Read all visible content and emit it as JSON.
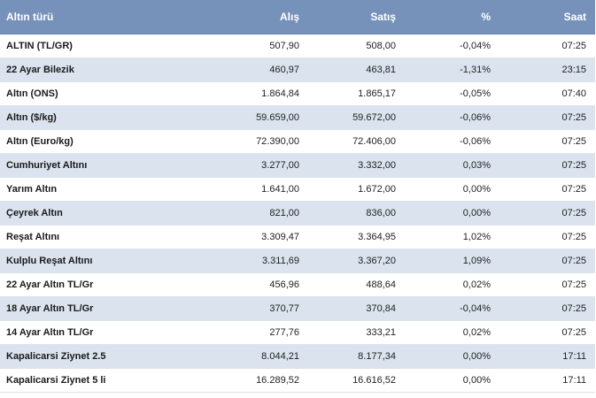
{
  "table": {
    "headers": [
      "Altın türü",
      "Alış",
      "Satış",
      "%",
      "Saat"
    ],
    "rows": [
      [
        "ALTIN (TL/GR)",
        "507,90",
        "508,00",
        "-0,04%",
        "07:25"
      ],
      [
        "22 Ayar Bilezik",
        "460,97",
        "463,81",
        "-1,31%",
        "23:15"
      ],
      [
        "Altın (ONS)",
        "1.864,84",
        "1.865,17",
        "-0,05%",
        "07:40"
      ],
      [
        "Altın ($/kg)",
        "59.659,00",
        "59.672,00",
        "-0,06%",
        "07:25"
      ],
      [
        "Altın (Euro/kg)",
        "72.390,00",
        "72.406,00",
        "-0,06%",
        "07:25"
      ],
      [
        "Cumhuriyet Altını",
        "3.277,00",
        "3.332,00",
        "0,03%",
        "07:25"
      ],
      [
        "Yarım Altın",
        "1.641,00",
        "1.672,00",
        "0,00%",
        "07:25"
      ],
      [
        "Çeyrek Altın",
        "821,00",
        "836,00",
        "0,00%",
        "07:25"
      ],
      [
        "Reşat Altını",
        "3.309,47",
        "3.364,95",
        "1,02%",
        "07:25"
      ],
      [
        "Kulplu Reşat Altını",
        "3.311,69",
        "3.367,20",
        "1,09%",
        "07:25"
      ],
      [
        "22 Ayar Altın TL/Gr",
        "456,96",
        "488,64",
        "0,02%",
        "07:25"
      ],
      [
        "18 Ayar Altın TL/Gr",
        "370,77",
        "370,84",
        "-0,04%",
        "07:25"
      ],
      [
        "14 Ayar Altın TL/Gr",
        "277,76",
        "333,21",
        "0,02%",
        "07:25"
      ],
      [
        "Kapalicarsi Ziynet 2.5",
        "8.044,21",
        "8.177,34",
        "0,00%",
        "17:11"
      ],
      [
        "Kapalicarsi Ziynet 5 li",
        "16.289,52",
        "16.616,52",
        "0,00%",
        "17:11"
      ]
    ]
  },
  "colors": {
    "header_bg": "#7792ba",
    "row_alt_bg": "#dbe3ee",
    "row_bg": "#ffffff"
  }
}
